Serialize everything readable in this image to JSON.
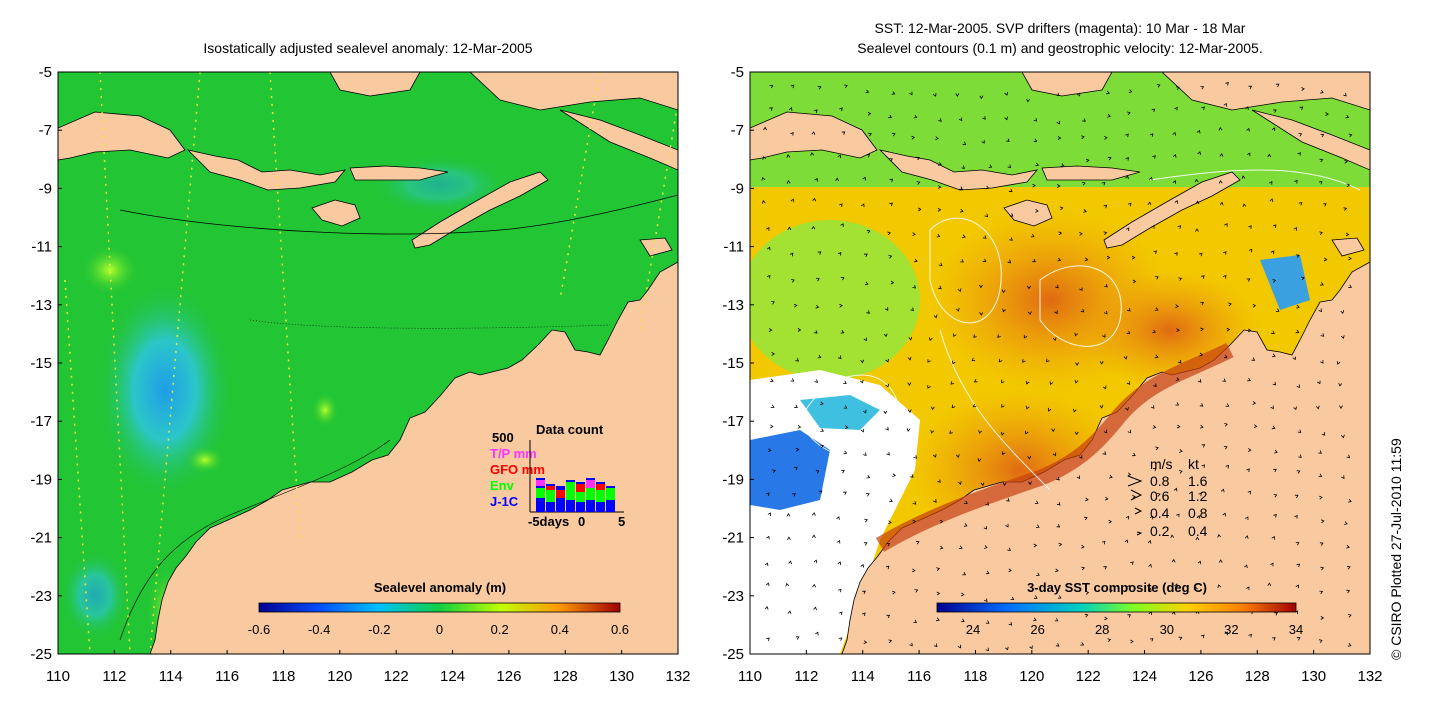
{
  "left_panel": {
    "title": "Isostatically adjusted sealevel anomaly: 12-Mar-2005",
    "colorbar": {
      "label": "Sealevel anomaly (m)",
      "ticks": [
        "-0.6",
        "-0.4",
        "-0.2",
        "0",
        "0.2",
        "0.4",
        "0.6"
      ]
    },
    "inset": {
      "title": "Data count",
      "ymax": "500",
      "legend": [
        {
          "label": "T/P mm",
          "color": "#ff33ff"
        },
        {
          "label": "GFO mm",
          "color": "#ff0000"
        },
        {
          "label": "Env",
          "color": "#00ff00"
        },
        {
          "label": "J-1C",
          "color": "#0000ff"
        }
      ],
      "x_ticks": [
        "-5days",
        "0",
        "5"
      ]
    }
  },
  "right_panel": {
    "title_line1": "SST: 12-Mar-2005. SVP drifters (magenta): 10 Mar - 18 Mar",
    "title_line2": "Sealevel contours (0.1 m) and geostrophic velocity: 12-Mar-2005.",
    "colorbar": {
      "label": "3-day SST composite (deg C)",
      "ticks": [
        "24",
        "26",
        "28",
        "30",
        "32",
        "34"
      ]
    },
    "speed_legend": {
      "header": [
        "m/s",
        "kt"
      ],
      "rows": [
        [
          "0.8",
          "1.6"
        ],
        [
          "0.6",
          "1.2"
        ],
        [
          "0.4",
          "0.8"
        ],
        [
          "0.2",
          "0.4"
        ]
      ]
    }
  },
  "axes": {
    "y_ticks": [
      "-5",
      "-7",
      "-9",
      "-11",
      "-13",
      "-15",
      "-17",
      "-19",
      "-21",
      "-23",
      "-25"
    ],
    "x_ticks": [
      "110",
      "112",
      "114",
      "116",
      "118",
      "120",
      "122",
      "124",
      "126",
      "128",
      "130",
      "132"
    ]
  },
  "credit": "© CSIRO Plotted 27-Jul-2010 11:59",
  "colors": {
    "land": "#f9c9a0",
    "ocean_left": "#22c534",
    "ocean_right": "#f2c800"
  }
}
